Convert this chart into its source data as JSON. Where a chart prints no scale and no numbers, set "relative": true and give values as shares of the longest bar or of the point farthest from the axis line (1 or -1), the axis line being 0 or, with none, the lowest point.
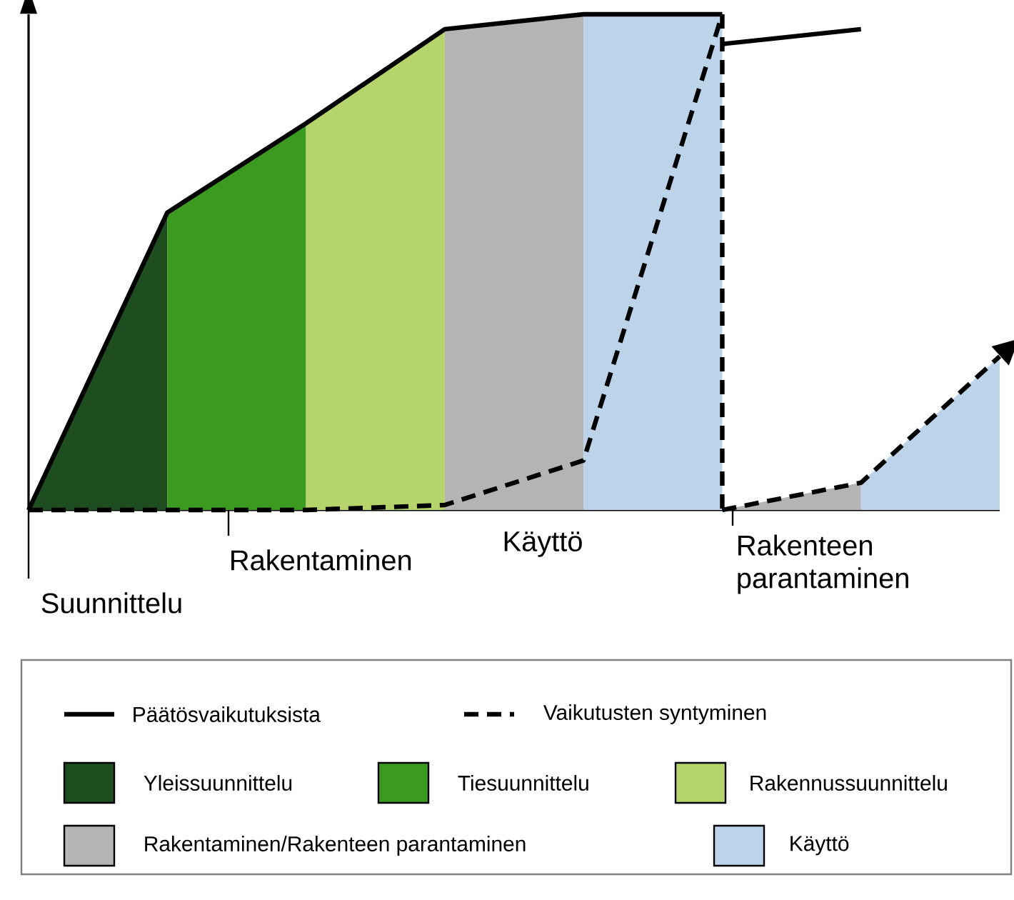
{
  "chart_data": {
    "type": "area",
    "relative": true,
    "legend": "bottom",
    "categories": [
      null,
      null,
      null,
      null,
      null,
      null,
      null,
      null
    ],
    "annotations": [
      "Suunnittelu",
      "Rakentaminen",
      "Käyttö",
      "Rakenteen parantaminen"
    ],
    "series": [
      {
        "name": "Yleissuunnittelu",
        "color": "#1e4d20",
        "values": [
          0,
          0.6,
          null,
          null,
          null,
          null,
          null,
          null
        ]
      },
      {
        "name": "Tiesuunnittelu",
        "color": "#3d9a20",
        "values": [
          null,
          0.6,
          0.78,
          null,
          null,
          null,
          null,
          null
        ]
      },
      {
        "name": "Rakennussuunnittelu",
        "color": "#b6d46c",
        "values": [
          null,
          null,
          0.78,
          0.97,
          null,
          null,
          null,
          null
        ]
      },
      {
        "name": "Rakentaminen/Rakenteen parantaminen",
        "color": "#b4b4b4",
        "values": [
          null,
          null,
          null,
          0.97,
          1,
          null,
          null,
          null
        ]
      },
      {
        "name": "Käyttö",
        "color": "#bdd3ea",
        "values": [
          null,
          null,
          null,
          null,
          1,
          1,
          null,
          null
        ]
      },
      {
        "color": "#b4b4b4",
        "values": [
          null,
          null,
          null,
          null,
          null,
          0,
          0.055,
          null
        ]
      },
      {
        "color": "#bdd3ea",
        "values": [
          null,
          null,
          null,
          null,
          null,
          null,
          0.055,
          0.31
        ]
      },
      {
        "type": "line",
        "name": "Päätösvaikutuksista",
        "color": "#000000",
        "line_style": "solid",
        "values": [
          0,
          0.6,
          0.78,
          0.97,
          1,
          1,
          null,
          null
        ]
      },
      {
        "type": "line",
        "color": "#000000",
        "line_style": "solid",
        "values": [
          null,
          null,
          null,
          null,
          null,
          0.94,
          0.97,
          null
        ]
      },
      {
        "type": "line",
        "name": "Vaikutusten syntyminen",
        "color": "#000000",
        "line_style": "dashed",
        "values": [
          0,
          0,
          0,
          0.01,
          0.1,
          1,
          null,
          null
        ]
      },
      {
        "type": "line",
        "color": "#000000",
        "line_style": "dashed",
        "values": [
          null,
          null,
          null,
          null,
          null,
          0,
          0.055,
          0.31
        ]
      }
    ]
  }
}
